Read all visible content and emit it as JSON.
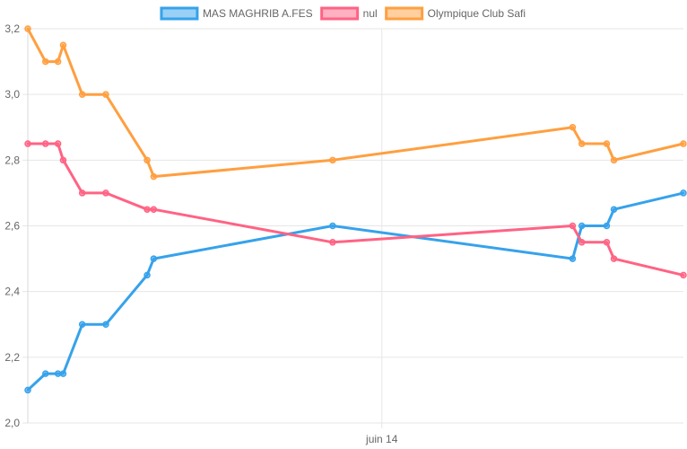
{
  "chart_data": {
    "type": "line",
    "title": "",
    "xlabel": "",
    "ylabel": "",
    "legend_position": "top",
    "grid": true,
    "ylim": [
      2.0,
      3.2
    ],
    "y_ticks": [
      "2,0",
      "2,2",
      "2,4",
      "2,6",
      "2,8",
      "3,0",
      "3,2"
    ],
    "y_tick_values": [
      2.0,
      2.2,
      2.4,
      2.6,
      2.8,
      3.0,
      3.2
    ],
    "x_tick_labels": [
      "juin 14"
    ],
    "x_tick_positions": [
      0.54
    ],
    "x": [
      0,
      0.027,
      0.046,
      0.054,
      0.083,
      0.119,
      0.182,
      0.192,
      0.465,
      0.831,
      0.845,
      0.883,
      0.894,
      1.0
    ],
    "series": [
      {
        "name": "MAS MAGHRIB A.FES",
        "color": "#36a2eb",
        "values": [
          2.1,
          2.15,
          2.15,
          2.15,
          2.3,
          2.3,
          2.45,
          2.5,
          2.6,
          2.5,
          2.6,
          2.6,
          2.65,
          2.7
        ]
      },
      {
        "name": "nul",
        "color": "#ff6384",
        "values": [
          2.85,
          2.85,
          2.85,
          2.8,
          2.7,
          2.7,
          2.65,
          2.65,
          2.55,
          2.6,
          2.55,
          2.55,
          2.5,
          2.45
        ]
      },
      {
        "name": "Olympique Club Safi",
        "color": "#ff9f40",
        "values": [
          3.2,
          3.1,
          3.1,
          3.15,
          3.0,
          3.0,
          2.8,
          2.75,
          2.8,
          2.9,
          2.85,
          2.85,
          2.8,
          2.85
        ]
      }
    ]
  }
}
